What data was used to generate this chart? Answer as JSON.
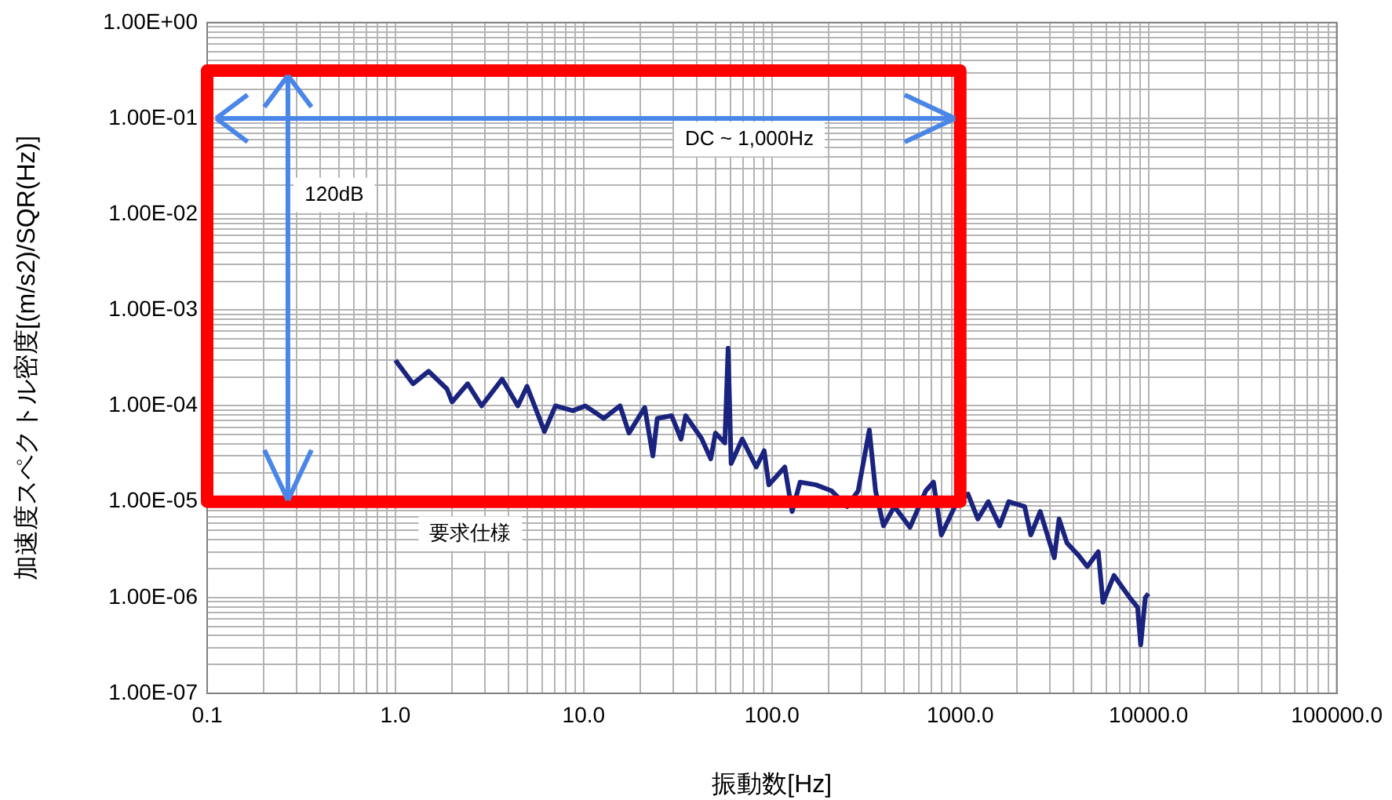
{
  "chart_data": {
    "type": "line",
    "xlabel": "振動数[Hz]",
    "ylabel": "加速度スペクトル密度[(m/s2)/SQR(Hz)]",
    "log": "xy",
    "grid": true,
    "marker": "none",
    "line_style": "solid",
    "xlim": [
      0.1,
      100000
    ],
    "ylim": [
      1e-07,
      1
    ],
    "xticks": [
      {
        "value": 0.1,
        "label": "0.1"
      },
      {
        "value": 0.2,
        "label": null
      },
      {
        "value": 0.3,
        "label": null
      },
      {
        "value": 0.4,
        "label": null
      },
      {
        "value": 0.5,
        "label": null
      },
      {
        "value": 0.6,
        "label": null
      },
      {
        "value": 0.7,
        "label": null
      },
      {
        "value": 0.8,
        "label": null
      },
      {
        "value": 0.9,
        "label": null
      },
      {
        "value": 1,
        "label": "1.0"
      },
      {
        "value": 2,
        "label": null
      },
      {
        "value": 3,
        "label": null
      },
      {
        "value": 4,
        "label": null
      },
      {
        "value": 5,
        "label": null
      },
      {
        "value": 6,
        "label": null
      },
      {
        "value": 7,
        "label": null
      },
      {
        "value": 8,
        "label": null
      },
      {
        "value": 9,
        "label": null
      },
      {
        "value": 10,
        "label": "10.0"
      },
      {
        "value": 20,
        "label": null
      },
      {
        "value": 30,
        "label": null
      },
      {
        "value": 40,
        "label": null
      },
      {
        "value": 50,
        "label": null
      },
      {
        "value": 60,
        "label": null
      },
      {
        "value": 70,
        "label": null
      },
      {
        "value": 80,
        "label": null
      },
      {
        "value": 90,
        "label": null
      },
      {
        "value": 100,
        "label": "100.0"
      },
      {
        "value": 200,
        "label": null
      },
      {
        "value": 300,
        "label": null
      },
      {
        "value": 400,
        "label": null
      },
      {
        "value": 500,
        "label": null
      },
      {
        "value": 600,
        "label": null
      },
      {
        "value": 700,
        "label": null
      },
      {
        "value": 800,
        "label": null
      },
      {
        "value": 900,
        "label": null
      },
      {
        "value": 1000,
        "label": "1000.0"
      },
      {
        "value": 2000,
        "label": null
      },
      {
        "value": 3000,
        "label": null
      },
      {
        "value": 4000,
        "label": null
      },
      {
        "value": 5000,
        "label": null
      },
      {
        "value": 6000,
        "label": null
      },
      {
        "value": 7000,
        "label": null
      },
      {
        "value": 8000,
        "label": null
      },
      {
        "value": 9000,
        "label": null
      },
      {
        "value": 10000,
        "label": "10000.0"
      },
      {
        "value": 20000,
        "label": null
      },
      {
        "value": 30000,
        "label": null
      },
      {
        "value": 40000,
        "label": null
      },
      {
        "value": 50000,
        "label": null
      },
      {
        "value": 60000,
        "label": null
      },
      {
        "value": 70000,
        "label": null
      },
      {
        "value": 80000,
        "label": null
      },
      {
        "value": 90000,
        "label": null
      },
      {
        "value": 100000,
        "label": "100000.0"
      }
    ],
    "yticks": [
      {
        "value": 1e-07,
        "label": "1.00E-07"
      },
      {
        "value": 2e-07,
        "label": null
      },
      {
        "value": 3e-07,
        "label": null
      },
      {
        "value": 4e-07,
        "label": null
      },
      {
        "value": 5e-07,
        "label": null
      },
      {
        "value": 6e-07,
        "label": null
      },
      {
        "value": 7e-07,
        "label": null
      },
      {
        "value": 8e-07,
        "label": null
      },
      {
        "value": 9e-07,
        "label": null
      },
      {
        "value": 1e-06,
        "label": "1.00E-06"
      },
      {
        "value": 2e-06,
        "label": null
      },
      {
        "value": 3e-06,
        "label": null
      },
      {
        "value": 4e-06,
        "label": null
      },
      {
        "value": 5e-06,
        "label": null
      },
      {
        "value": 6e-06,
        "label": null
      },
      {
        "value": 7e-06,
        "label": null
      },
      {
        "value": 8e-06,
        "label": null
      },
      {
        "value": 9e-06,
        "label": null
      },
      {
        "value": 1e-05,
        "label": "1.00E-05"
      },
      {
        "value": 2e-05,
        "label": null
      },
      {
        "value": 3e-05,
        "label": null
      },
      {
        "value": 4e-05,
        "label": null
      },
      {
        "value": 5e-05,
        "label": null
      },
      {
        "value": 6e-05,
        "label": null
      },
      {
        "value": 7e-05,
        "label": null
      },
      {
        "value": 8e-05,
        "label": null
      },
      {
        "value": 9e-05,
        "label": null
      },
      {
        "value": 0.0001,
        "label": "1.00E-04"
      },
      {
        "value": 0.0002,
        "label": null
      },
      {
        "value": 0.0003,
        "label": null
      },
      {
        "value": 0.0004,
        "label": null
      },
      {
        "value": 0.0005,
        "label": null
      },
      {
        "value": 0.0006,
        "label": null
      },
      {
        "value": 0.0007,
        "label": null
      },
      {
        "value": 0.0008,
        "label": null
      },
      {
        "value": 0.0009,
        "label": null
      },
      {
        "value": 0.001,
        "label": "1.00E-03"
      },
      {
        "value": 0.002,
        "label": null
      },
      {
        "value": 0.003,
        "label": null
      },
      {
        "value": 0.004,
        "label": null
      },
      {
        "value": 0.005,
        "label": null
      },
      {
        "value": 0.006,
        "label": null
      },
      {
        "value": 0.007,
        "label": null
      },
      {
        "value": 0.008,
        "label": null
      },
      {
        "value": 0.009,
        "label": null
      },
      {
        "value": 0.01,
        "label": "1.00E-02"
      },
      {
        "value": 0.02,
        "label": null
      },
      {
        "value": 0.03,
        "label": null
      },
      {
        "value": 0.04,
        "label": null
      },
      {
        "value": 0.05,
        "label": null
      },
      {
        "value": 0.06,
        "label": null
      },
      {
        "value": 0.07,
        "label": null
      },
      {
        "value": 0.08,
        "label": null
      },
      {
        "value": 0.09,
        "label": null
      },
      {
        "value": 0.1,
        "label": "1.00E-01"
      },
      {
        "value": 0.2,
        "label": null
      },
      {
        "value": 0.3,
        "label": null
      },
      {
        "value": 0.4,
        "label": null
      },
      {
        "value": 0.5,
        "label": null
      },
      {
        "value": 0.6,
        "label": null
      },
      {
        "value": 0.7,
        "label": null
      },
      {
        "value": 0.8,
        "label": null
      },
      {
        "value": 0.9,
        "label": null
      },
      {
        "value": 1,
        "label": "1.00E+00"
      }
    ],
    "annotations": [
      "DC ~ 1,000Hz",
      "120dB",
      "要求仕様"
    ],
    "series": [
      {
        "color": "#1a237e",
        "x": [
          1,
          1.24,
          1.5,
          1.88,
          2.0,
          2.42,
          2.87,
          3.69,
          4.47,
          5.0,
          6.19,
          7.08,
          8.75,
          10.2,
          12.8,
          15.6,
          17.4,
          21.1,
          23.3,
          24.6,
          29.3,
          32.9,
          34.8,
          42.2,
          47.3,
          50.1,
          56.2,
          58.5,
          60.7,
          69.5,
          82.5,
          90.9,
          96.2,
          117,
          128,
          141,
          171,
          207,
          251,
          287,
          329,
          355,
          391,
          447,
          541,
          656,
          721,
          794,
          962,
          1100,
          1240,
          1410,
          1620,
          1810,
          2200,
          2370,
          2660,
          3160,
          3350,
          3690,
          4220,
          4730,
          5410,
          5730,
          6560,
          7220,
          7940,
          8750,
          9090,
          9620,
          10000
        ],
        "values": [
          0.0003,
          0.00017,
          0.00023,
          0.00015,
          0.00011,
          0.00017,
          0.0001,
          0.00019,
          0.0001,
          0.00016,
          5.4e-05,
          0.0001,
          8.9e-05,
          0.0001,
          7.4e-05,
          0.0001,
          5.2e-05,
          9.6e-05,
          3e-05,
          7.4e-05,
          7.9e-05,
          4.5e-05,
          7.9e-05,
          4.6e-05,
          2.8e-05,
          5.2e-05,
          4.1e-05,
          0.0004,
          2.5e-05,
          4.5e-05,
          2.3e-05,
          3.4e-05,
          1.5e-05,
          2.3e-05,
          7.9e-06,
          1.6e-05,
          1.5e-05,
          1.3e-05,
          8.9e-06,
          1.3e-05,
          5.6e-05,
          1.3e-05,
          5.6e-06,
          8.9e-06,
          5.4e-06,
          1.3e-05,
          1.6e-05,
          4.5e-06,
          1e-05,
          1.2e-05,
          6.6e-06,
          1e-05,
          5.6e-06,
          1e-05,
          8.9e-06,
          4.5e-06,
          7.9e-06,
          2.6e-06,
          6.6e-06,
          3.7e-06,
          2.8e-06,
          2.1e-06,
          3e-06,
          8.9e-07,
          1.7e-06,
          1.3e-06,
          1e-06,
          7.9e-07,
          3.2e-07,
          1e-06,
          1.1e-06
        ]
      }
    ]
  }
}
